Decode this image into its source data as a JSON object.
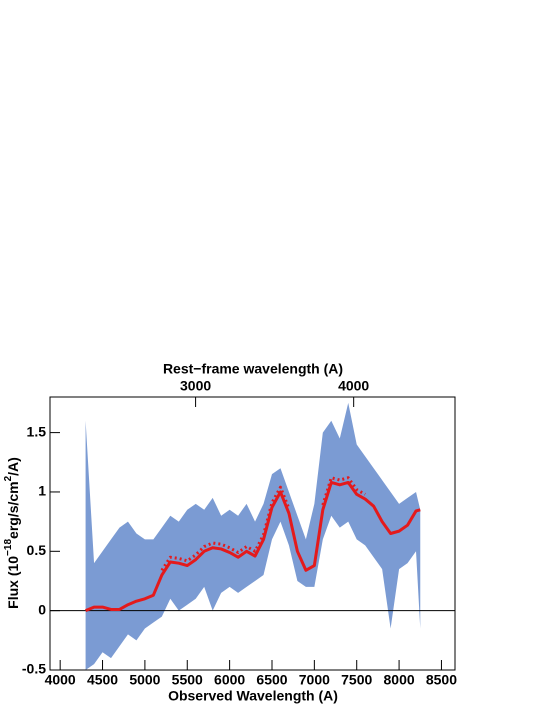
{
  "chart_data": {
    "type": "line",
    "title": "Rest−frame wavelength (A)",
    "xlabel": "Observed Wavelength (A)",
    "ylabel_parts": [
      "Flux (10",
      "−18",
      "erg/s/cm",
      "2",
      "/A)"
    ],
    "x": [
      4300,
      4400,
      4500,
      4600,
      4700,
      4800,
      4900,
      5000,
      5100,
      5200,
      5300,
      5400,
      5500,
      5600,
      5700,
      5800,
      5900,
      6000,
      6100,
      6200,
      6300,
      6400,
      6500,
      6600,
      6700,
      6800,
      6900,
      7000,
      7100,
      7200,
      7300,
      7400,
      7500,
      7600,
      7700,
      7800,
      7900,
      8000,
      8100,
      8200,
      8250
    ],
    "band": {
      "color": "#7b9bd3",
      "upper": [
        1.6,
        0.4,
        0.5,
        0.6,
        0.7,
        0.75,
        0.65,
        0.6,
        0.6,
        0.7,
        0.8,
        0.75,
        0.85,
        0.9,
        0.85,
        0.95,
        0.8,
        0.85,
        0.8,
        0.9,
        0.75,
        0.9,
        1.15,
        1.2,
        1.0,
        0.8,
        0.6,
        0.9,
        1.5,
        1.6,
        1.45,
        1.75,
        1.4,
        1.3,
        1.2,
        1.1,
        1.0,
        0.9,
        0.95,
        1.0,
        0.85
      ],
      "lower": [
        -0.5,
        -0.45,
        -0.35,
        -0.4,
        -0.3,
        -0.2,
        -0.25,
        -0.15,
        -0.1,
        -0.05,
        0.1,
        0.0,
        0.05,
        0.1,
        0.2,
        0.0,
        0.15,
        0.2,
        0.15,
        0.2,
        0.25,
        0.3,
        0.6,
        0.75,
        0.55,
        0.25,
        0.2,
        0.2,
        0.6,
        0.8,
        0.7,
        0.75,
        0.6,
        0.55,
        0.45,
        0.35,
        -0.15,
        0.35,
        0.4,
        0.5,
        -0.15
      ]
    },
    "series": [
      {
        "color": "#e41a1c",
        "style": "solid",
        "values": [
          0.0,
          0.03,
          0.03,
          0.01,
          0.01,
          0.05,
          0.08,
          0.1,
          0.13,
          0.3,
          0.41,
          0.4,
          0.38,
          0.43,
          0.5,
          0.53,
          0.52,
          0.49,
          0.45,
          0.5,
          0.46,
          0.6,
          0.87,
          1.0,
          0.82,
          0.5,
          0.34,
          0.38,
          0.85,
          1.08,
          1.06,
          1.08,
          0.98,
          0.94,
          0.88,
          0.75,
          0.65,
          0.67,
          0.72,
          0.84,
          0.85
        ]
      },
      {
        "color": "#e41a1c",
        "style": "dotted",
        "values": [
          null,
          null,
          null,
          null,
          null,
          null,
          null,
          null,
          null,
          0.34,
          0.45,
          0.44,
          0.42,
          0.47,
          0.54,
          0.57,
          0.56,
          0.53,
          0.49,
          0.54,
          0.5,
          0.64,
          0.91,
          1.04,
          0.86,
          null,
          null,
          null,
          0.89,
          1.12,
          1.1,
          1.12,
          1.02,
          0.98,
          null,
          null,
          null,
          null,
          null,
          null,
          null
        ]
      }
    ],
    "hline": 0,
    "xlim": [
      3880,
      8660
    ],
    "xticks": [
      4000,
      4500,
      5000,
      5500,
      6000,
      6500,
      7000,
      7500,
      8000,
      8500
    ],
    "ylim": [
      -0.5,
      1.8
    ],
    "yticks": [
      -0.5,
      0,
      0.5,
      1,
      1.5
    ],
    "x2lim": [
      2079,
      4641
    ],
    "x2ticks": [
      3000,
      4000
    ]
  }
}
